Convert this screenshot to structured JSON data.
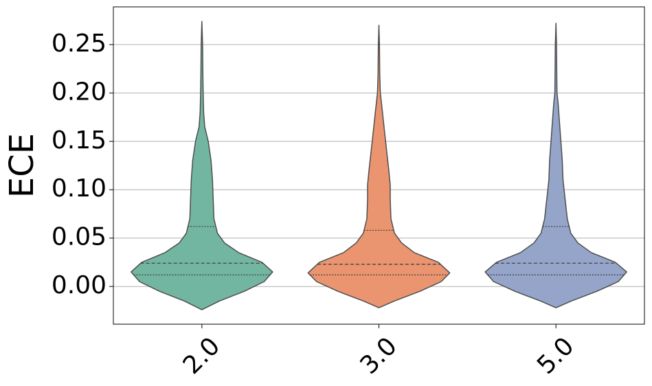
{
  "chart_data": {
    "type": "violin",
    "ylabel": "ECE",
    "categories": [
      "2.0",
      "3.0",
      "5.0"
    ],
    "ylim": [
      -0.039,
      0.289
    ],
    "yticks": [
      {
        "value": 0,
        "label": "0.00"
      },
      {
        "value": 0.05,
        "label": "0.05"
      },
      {
        "value": 0.1,
        "label": "0.10"
      },
      {
        "value": 0.15,
        "label": "0.15"
      },
      {
        "value": 0.2,
        "label": "0.20"
      },
      {
        "value": 0.25,
        "label": "0.25"
      }
    ],
    "grid": true,
    "violins": [
      {
        "color": "#72b6a1",
        "q1": 0.012,
        "median": 0.024,
        "q3": 0.062,
        "y": [
          -0.024,
          -0.015,
          -0.005,
          0.005,
          0.015,
          0.025,
          0.035,
          0.045,
          0.055,
          0.07,
          0.09,
          0.11,
          0.13,
          0.15,
          0.165,
          0.18,
          0.2,
          0.22,
          0.25,
          0.274
        ],
        "density": [
          0,
          0.25,
          0.6,
          0.88,
          1.0,
          0.85,
          0.52,
          0.32,
          0.22,
          0.17,
          0.16,
          0.15,
          0.13,
          0.09,
          0.04,
          0.025,
          0.018,
          0.014,
          0.01,
          0
        ]
      },
      {
        "color": "#eb9570",
        "q1": 0.012,
        "median": 0.023,
        "q3": 0.058,
        "y": [
          -0.022,
          -0.015,
          -0.005,
          0.005,
          0.014,
          0.025,
          0.035,
          0.045,
          0.055,
          0.07,
          0.09,
          0.105,
          0.12,
          0.14,
          0.16,
          0.18,
          0.2,
          0.22,
          0.25,
          0.27
        ],
        "density": [
          0,
          0.22,
          0.58,
          0.88,
          1.0,
          0.84,
          0.5,
          0.32,
          0.22,
          0.17,
          0.16,
          0.16,
          0.14,
          0.11,
          0.08,
          0.05,
          0.02,
          0.012,
          0.008,
          0
        ]
      },
      {
        "color": "#94a5c9",
        "q1": 0.012,
        "median": 0.024,
        "q3": 0.062,
        "y": [
          -0.022,
          -0.015,
          -0.005,
          0.005,
          0.015,
          0.025,
          0.035,
          0.045,
          0.055,
          0.07,
          0.09,
          0.11,
          0.13,
          0.15,
          0.17,
          0.19,
          0.2,
          0.22,
          0.25,
          0.272
        ],
        "density": [
          0,
          0.22,
          0.58,
          0.88,
          1.0,
          0.84,
          0.5,
          0.31,
          0.21,
          0.16,
          0.13,
          0.1,
          0.09,
          0.07,
          0.05,
          0.03,
          0.015,
          0.012,
          0.008,
          0
        ]
      }
    ]
  }
}
